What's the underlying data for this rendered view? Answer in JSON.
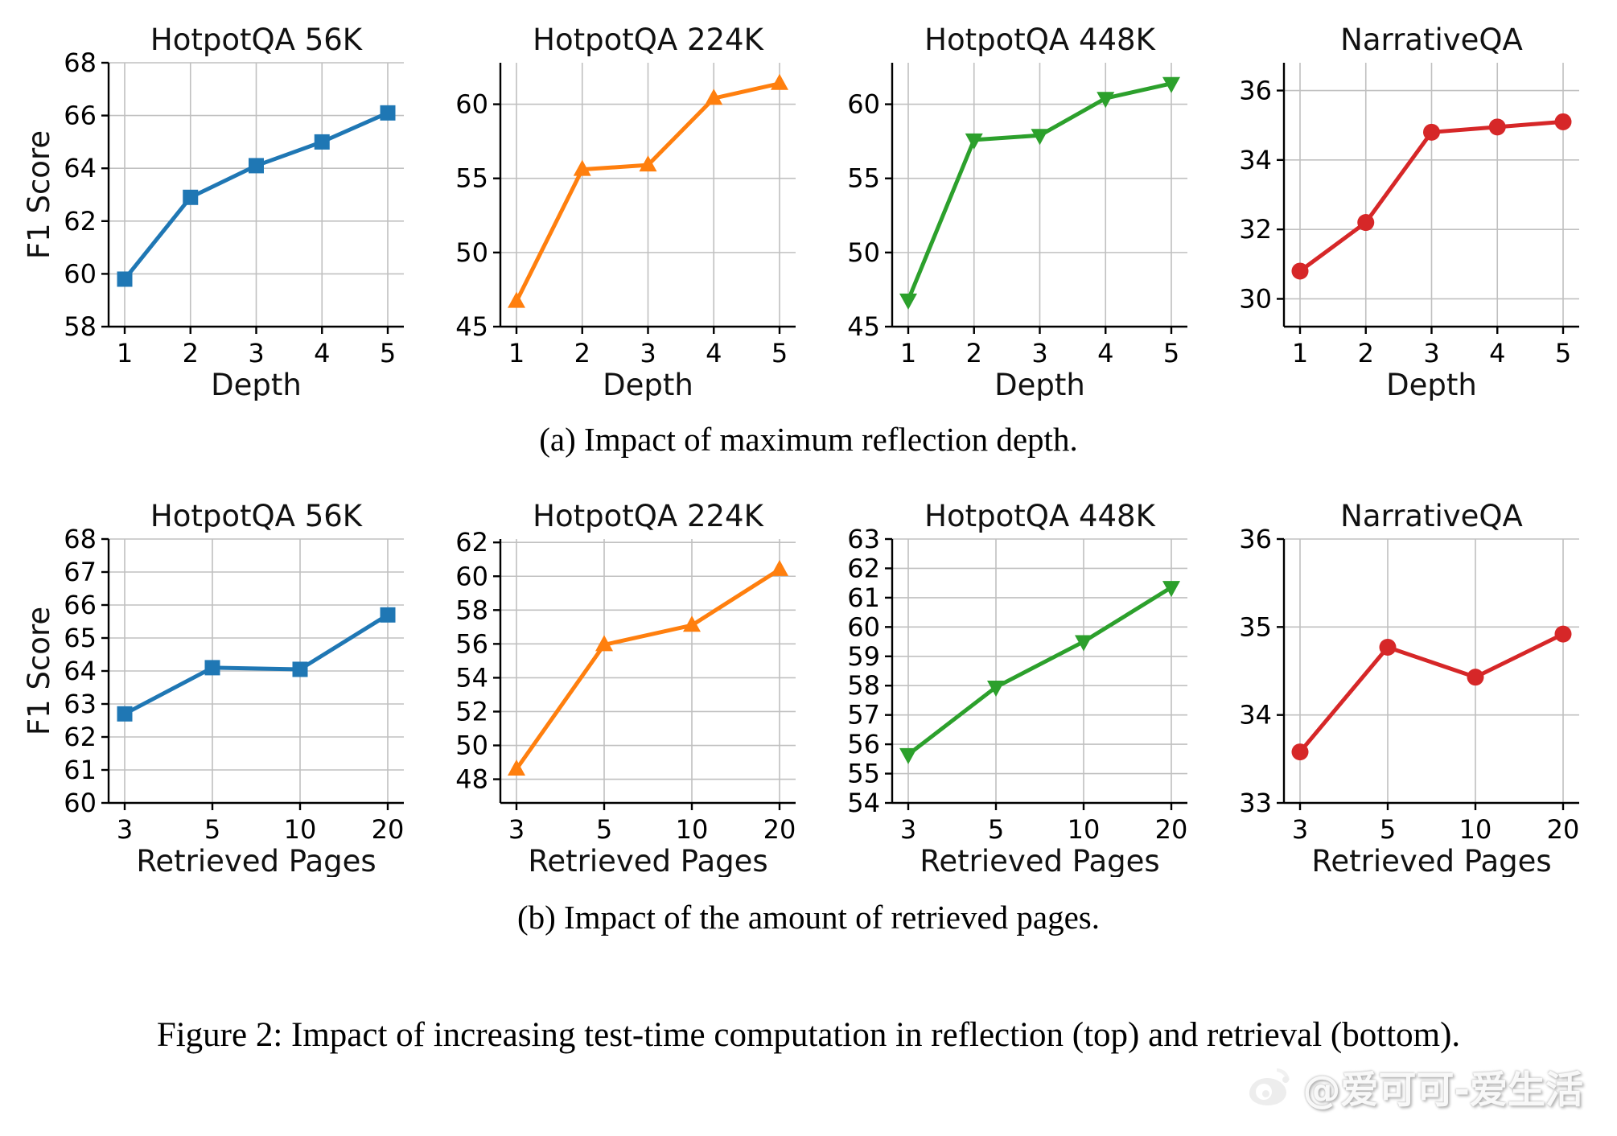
{
  "figure": {
    "caption_a": "(a) Impact of maximum reflection depth.",
    "caption_b": "(b) Impact of the amount of retrieved pages.",
    "main_caption": "Figure 2: Impact of increasing test-time computation in reflection (top) and retrieval (bottom).",
    "watermark_text": "@爱可可-爱生活"
  },
  "chart_data": [
    {
      "id": "depth-hotpotqa-56k",
      "row": "a",
      "type": "line",
      "title": "HotpotQA 56K",
      "xlabel": "Depth",
      "ylabel": "F1 Score",
      "x_ticks": [
        "1",
        "2",
        "3",
        "4",
        "5"
      ],
      "values": [
        59.8,
        62.9,
        64.1,
        65.0,
        66.1
      ],
      "ylim": [
        58,
        68
      ],
      "yticks": [
        58,
        60,
        62,
        64,
        66,
        68
      ],
      "color": "#1f77b4",
      "marker": "square",
      "grid": true,
      "legend": "none"
    },
    {
      "id": "depth-hotpotqa-224k",
      "row": "a",
      "type": "line",
      "title": "HotpotQA 224K",
      "xlabel": "Depth",
      "ylabel": "",
      "x_ticks": [
        "1",
        "2",
        "3",
        "4",
        "5"
      ],
      "values": [
        46.7,
        55.6,
        55.9,
        60.4,
        61.4
      ],
      "ylim": [
        45,
        62.8
      ],
      "yticks": [
        45,
        50,
        55,
        60
      ],
      "color": "#ff7f0e",
      "marker": "triangle-up",
      "grid": true,
      "legend": "none"
    },
    {
      "id": "depth-hotpotqa-448k",
      "row": "a",
      "type": "line",
      "title": "HotpotQA 448K",
      "xlabel": "Depth",
      "ylabel": "",
      "x_ticks": [
        "1",
        "2",
        "3",
        "4",
        "5"
      ],
      "values": [
        46.8,
        57.6,
        57.9,
        60.4,
        61.4
      ],
      "ylim": [
        45,
        62.8
      ],
      "yticks": [
        45,
        50,
        55,
        60
      ],
      "color": "#2ca02c",
      "marker": "triangle-down",
      "grid": true,
      "legend": "none"
    },
    {
      "id": "depth-narrativeqa",
      "row": "a",
      "type": "line",
      "title": "NarrativeQA",
      "xlabel": "Depth",
      "ylabel": "",
      "x_ticks": [
        "1",
        "2",
        "3",
        "4",
        "5"
      ],
      "values": [
        30.8,
        32.2,
        34.8,
        34.95,
        35.1
      ],
      "ylim": [
        29.2,
        36.8
      ],
      "yticks": [
        30,
        32,
        34,
        36
      ],
      "color": "#d62728",
      "marker": "circle",
      "grid": true,
      "legend": "none"
    },
    {
      "id": "pages-hotpotqa-56k",
      "row": "b",
      "type": "line",
      "title": "HotpotQA 56K",
      "xlabel": "Retrieved Pages",
      "ylabel": "F1 Score",
      "x_ticks": [
        "3",
        "5",
        "10",
        "20"
      ],
      "values": [
        62.7,
        64.1,
        64.05,
        65.7
      ],
      "ylim": [
        60,
        68
      ],
      "yticks": [
        60,
        61,
        62,
        63,
        64,
        65,
        66,
        67,
        68
      ],
      "color": "#1f77b4",
      "marker": "square",
      "grid": true,
      "legend": "none"
    },
    {
      "id": "pages-hotpotqa-224k",
      "row": "b",
      "type": "line",
      "title": "HotpotQA 224K",
      "xlabel": "Retrieved Pages",
      "ylabel": "",
      "x_ticks": [
        "3",
        "5",
        "10",
        "20"
      ],
      "values": [
        48.6,
        55.95,
        57.1,
        60.4
      ],
      "ylim": [
        46.6,
        62.2
      ],
      "yticks": [
        48,
        50,
        52,
        54,
        56,
        58,
        60,
        62
      ],
      "color": "#ff7f0e",
      "marker": "triangle-up",
      "grid": true,
      "legend": "none"
    },
    {
      "id": "pages-hotpotqa-448k",
      "row": "b",
      "type": "line",
      "title": "HotpotQA 448K",
      "xlabel": "Retrieved Pages",
      "ylabel": "",
      "x_ticks": [
        "3",
        "5",
        "10",
        "20"
      ],
      "values": [
        55.65,
        57.95,
        59.5,
        61.35
      ],
      "ylim": [
        54,
        63
      ],
      "yticks": [
        54,
        55,
        56,
        57,
        58,
        59,
        60,
        61,
        62,
        63
      ],
      "color": "#2ca02c",
      "marker": "triangle-down",
      "grid": true,
      "legend": "none"
    },
    {
      "id": "pages-narrativeqa",
      "row": "b",
      "type": "line",
      "title": "NarrativeQA",
      "xlabel": "Retrieved Pages",
      "ylabel": "",
      "x_ticks": [
        "3",
        "5",
        "10",
        "20"
      ],
      "values": [
        33.58,
        34.77,
        34.43,
        34.92
      ],
      "ylim": [
        33,
        36
      ],
      "yticks": [
        33,
        34,
        35,
        36
      ],
      "color": "#d62728",
      "marker": "circle",
      "grid": true,
      "legend": "none"
    }
  ]
}
